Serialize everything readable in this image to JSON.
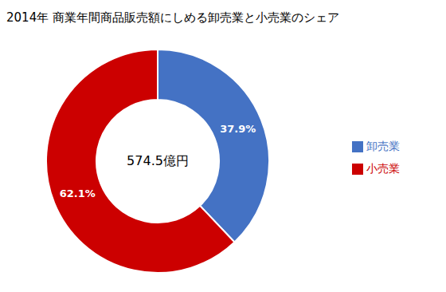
{
  "chart_data": {
    "type": "pie",
    "title": "2014年 商業年間商品販売額にしめる卸売業と小売業のシェア",
    "annotations": [
      "574.5億円"
    ],
    "categories": [
      "卸売業",
      "小売業"
    ],
    "values": [
      37.9,
      62.1
    ],
    "value_labels": [
      "37.9%",
      "62.1%"
    ],
    "colors": [
      "#4472C4",
      "#CC0000"
    ],
    "data_labels": true,
    "legend": "right"
  }
}
